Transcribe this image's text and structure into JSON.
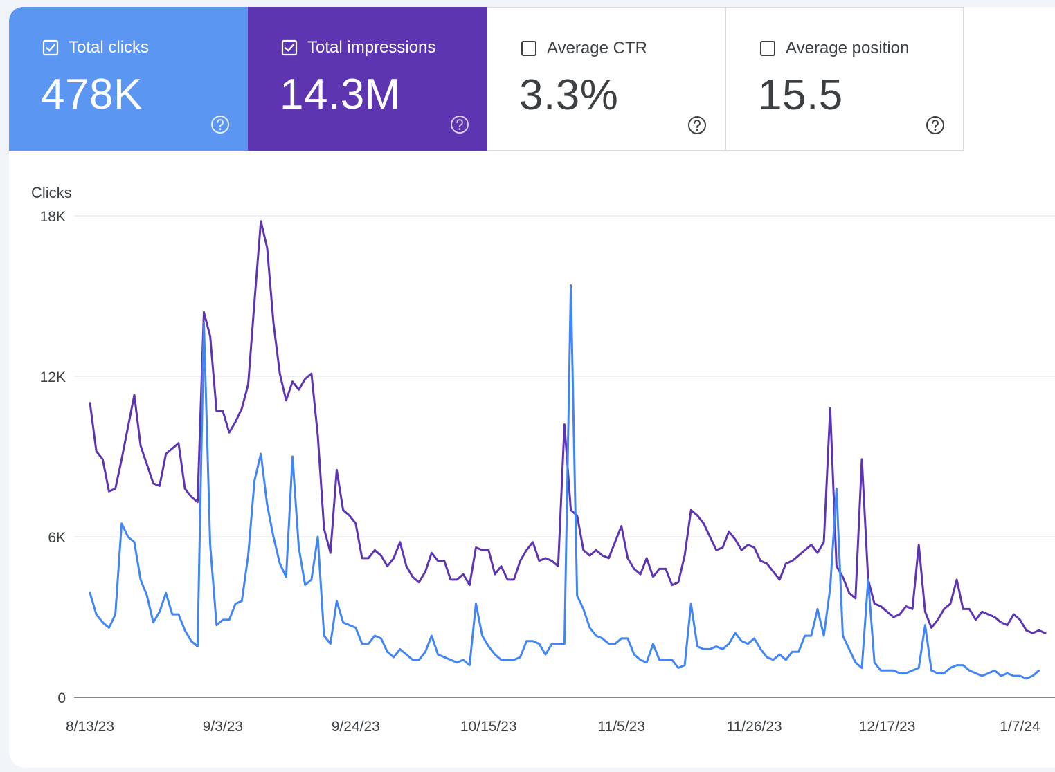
{
  "metrics": [
    {
      "label": "Total clicks",
      "value": "478K",
      "checked": true
    },
    {
      "label": "Total impressions",
      "value": "14.3M",
      "checked": true
    },
    {
      "label": "Average CTR",
      "value": "3.3%",
      "checked": false
    },
    {
      "label": "Average position",
      "value": "15.5",
      "checked": false
    }
  ],
  "colors": {
    "clicks": "#4285f4",
    "impressions": "#5e35b1",
    "grid": "#e0e0e0",
    "axis_text": "#3c4043"
  },
  "chart_data": {
    "type": "line",
    "title": "",
    "ylabel": "Clicks",
    "xlabel": "",
    "ylim": [
      0,
      18000
    ],
    "yticks": [
      0,
      6000,
      12000,
      18000
    ],
    "ytick_labels": [
      "0",
      "6K",
      "12K",
      "18K"
    ],
    "xtick_labels": [
      "8/13/23",
      "9/3/23",
      "9/24/23",
      "10/15/23",
      "11/5/23",
      "11/26/23",
      "12/17/23",
      "1/7/24"
    ],
    "xtick_index": [
      0,
      21,
      42,
      63,
      84,
      105,
      126,
      147
    ],
    "series": [
      {
        "name": "Total impressions",
        "values": [
          11000,
          9200,
          8900,
          7700,
          7800,
          8900,
          10100,
          11300,
          9400,
          8700,
          8000,
          7900,
          9100,
          9300,
          9500,
          7800,
          7500,
          7300,
          14400,
          13500,
          10700,
          10700,
          9900,
          10300,
          10800,
          11700,
          14800,
          17800,
          16800,
          14000,
          12100,
          11100,
          11800,
          11500,
          11900,
          12100,
          9800,
          6300,
          5400,
          8500,
          7000,
          6800,
          6500,
          5200,
          5200,
          5500,
          5300,
          4900,
          5200,
          5800,
          4900,
          4500,
          4300,
          4700,
          5400,
          5100,
          5100,
          4400,
          4400,
          4600,
          4200,
          5600,
          5500,
          5500,
          4600,
          4900,
          4400,
          4400,
          5100,
          5500,
          5800,
          5100,
          5200,
          5100,
          4900,
          10200,
          7000,
          6800,
          5500,
          5300,
          5500,
          5300,
          5200,
          5800,
          6400,
          5200,
          4800,
          4600,
          5200,
          4500,
          4800,
          4800,
          4200,
          4300,
          5300,
          7000,
          6800,
          6500,
          6000,
          5500,
          5600,
          6200,
          5900,
          5500,
          5700,
          5600,
          5100,
          5000,
          4700,
          4400,
          5000,
          5100,
          5300,
          5500,
          5700,
          5400,
          5800,
          10800,
          4900,
          4500,
          3900,
          3700,
          8900,
          4400,
          3500,
          3400,
          3200,
          3000,
          3100,
          3400,
          3300,
          5700,
          3200,
          2600,
          2900,
          3300,
          3500,
          4400,
          3300,
          3300,
          2900,
          3200,
          3100,
          3000,
          2800,
          2700,
          3100,
          2900,
          2500,
          2400,
          2500,
          2400
        ]
      },
      {
        "name": "Total clicks",
        "values": [
          3900,
          3100,
          2800,
          2600,
          3100,
          6500,
          6000,
          5800,
          4400,
          3800,
          2800,
          3200,
          3900,
          3100,
          3100,
          2500,
          2100,
          1900,
          14000,
          5700,
          2700,
          2900,
          2900,
          3500,
          3600,
          5300,
          8100,
          9100,
          7200,
          6000,
          5000,
          4500,
          9000,
          5600,
          4200,
          4400,
          6000,
          2300,
          2000,
          3600,
          2800,
          2700,
          2600,
          2000,
          2000,
          2300,
          2200,
          1700,
          1500,
          1800,
          1600,
          1400,
          1400,
          1700,
          2300,
          1600,
          1500,
          1400,
          1300,
          1400,
          1200,
          3500,
          2300,
          1900,
          1600,
          1400,
          1400,
          1400,
          1500,
          2100,
          2100,
          2000,
          1600,
          2000,
          2000,
          2000,
          15400,
          3800,
          3300,
          2600,
          2300,
          2200,
          2000,
          2000,
          2200,
          2200,
          1600,
          1400,
          1300,
          2000,
          1400,
          1400,
          1400,
          1100,
          1200,
          3500,
          1900,
          1800,
          1800,
          1900,
          1800,
          2000,
          2400,
          2100,
          2000,
          2200,
          1800,
          1500,
          1400,
          1600,
          1400,
          1700,
          1700,
          2300,
          2300,
          3300,
          2300,
          4100,
          7800,
          2300,
          1800,
          1300,
          1100,
          4400,
          1300,
          1000,
          1000,
          1000,
          900,
          900,
          1000,
          1100,
          2700,
          1000,
          900,
          900,
          1100,
          1200,
          1200,
          1000,
          900,
          800,
          900,
          1000,
          800,
          900,
          800,
          800,
          700,
          800,
          1000
        ]
      }
    ]
  }
}
